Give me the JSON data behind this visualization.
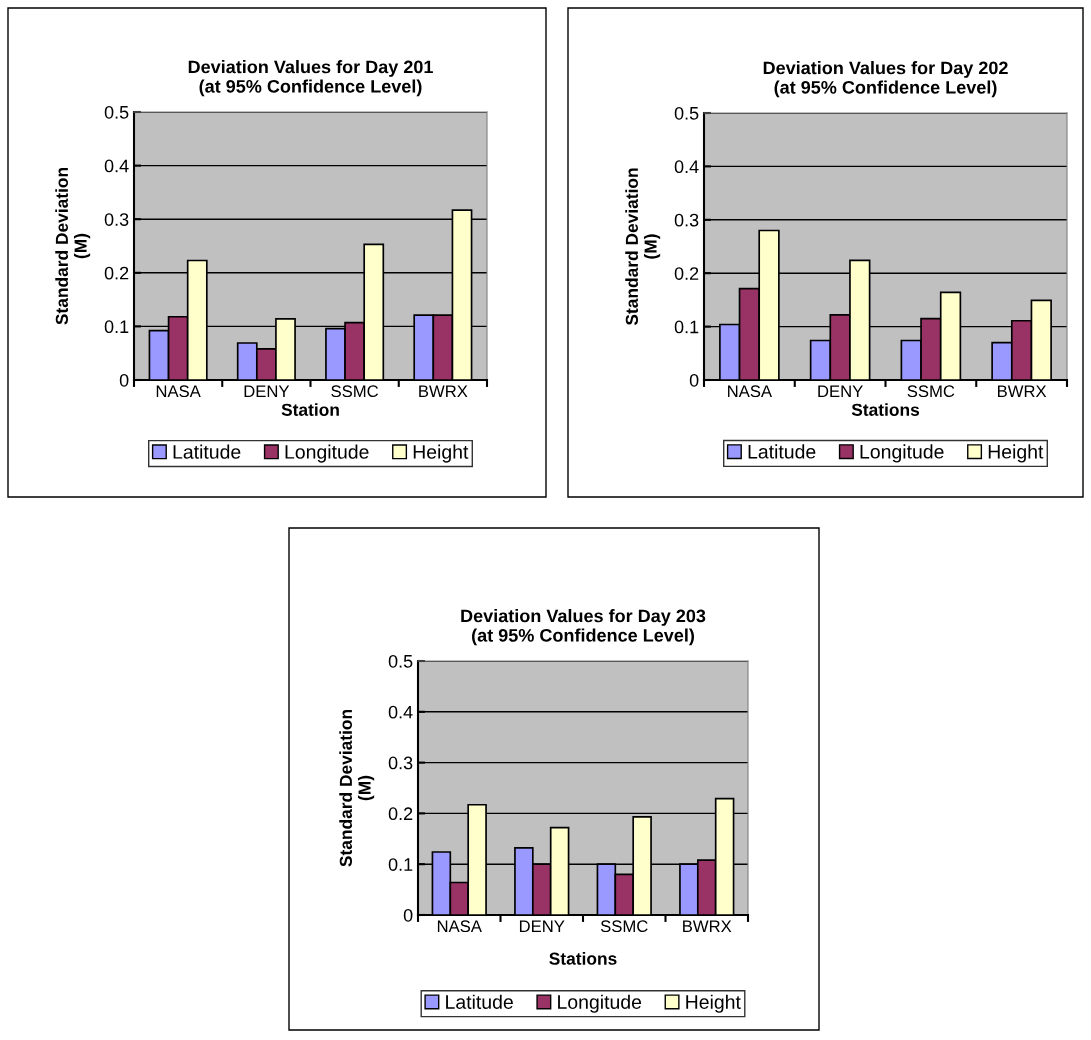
{
  "chart_data": [
    {
      "type": "bar",
      "title": "Deviation Values for Day 201\n(at 95% Confidence Level)",
      "xlabel": "Station",
      "ylabel": "Standard Deviation\n(M)",
      "categories": [
        "NASA",
        "DENY",
        "SSMC",
        "BWRX"
      ],
      "ylim": [
        0,
        0.5
      ],
      "yticks": [
        0,
        0.1,
        0.2,
        0.3,
        0.4,
        0.5
      ],
      "grid": "y",
      "legend": "bottom",
      "series": [
        {
          "name": "Latitude",
          "color": "#9999ff",
          "values": [
            0.092,
            0.069,
            0.096,
            0.121
          ]
        },
        {
          "name": "Longitude",
          "color": "#993366",
          "values": [
            0.118,
            0.058,
            0.107,
            0.121
          ]
        },
        {
          "name": "Height",
          "color": "#ffffcc",
          "values": [
            0.223,
            0.114,
            0.253,
            0.317
          ]
        }
      ]
    },
    {
      "type": "bar",
      "title": "Deviation Values for Day 202\n(at 95% Confidence Level)",
      "xlabel": "Stations",
      "ylabel": "Standard Deviation\n(M)",
      "categories": [
        "NASA",
        "DENY",
        "SSMC",
        "BWRX"
      ],
      "ylim": [
        0,
        0.5
      ],
      "yticks": [
        0,
        0.1,
        0.2,
        0.3,
        0.4,
        0.5
      ],
      "grid": "y",
      "legend": "bottom",
      "series": [
        {
          "name": "Latitude",
          "color": "#9999ff",
          "values": [
            0.104,
            0.074,
            0.074,
            0.07
          ]
        },
        {
          "name": "Longitude",
          "color": "#993366",
          "values": [
            0.171,
            0.122,
            0.115,
            0.111
          ]
        },
        {
          "name": "Height",
          "color": "#ffffcc",
          "values": [
            0.28,
            0.224,
            0.164,
            0.149
          ]
        }
      ]
    },
    {
      "type": "bar",
      "title": "Deviation Values for Day 203\n(at 95% Confidence Level)",
      "xlabel": "Stations",
      "ylabel": "Standard Deviation\n(M)",
      "categories": [
        "NASA",
        "DENY",
        "SSMC",
        "BWRX"
      ],
      "ylim": [
        0,
        0.5
      ],
      "yticks": [
        0,
        0.1,
        0.2,
        0.3,
        0.4,
        0.5
      ],
      "grid": "y",
      "legend": "bottom",
      "series": [
        {
          "name": "Latitude",
          "color": "#9999ff",
          "values": [
            0.124,
            0.132,
            0.1,
            0.1
          ]
        },
        {
          "name": "Longitude",
          "color": "#993366",
          "values": [
            0.064,
            0.1,
            0.08,
            0.108
          ]
        },
        {
          "name": "Height",
          "color": "#ffffcc",
          "values": [
            0.217,
            0.172,
            0.193,
            0.229
          ]
        }
      ]
    }
  ]
}
